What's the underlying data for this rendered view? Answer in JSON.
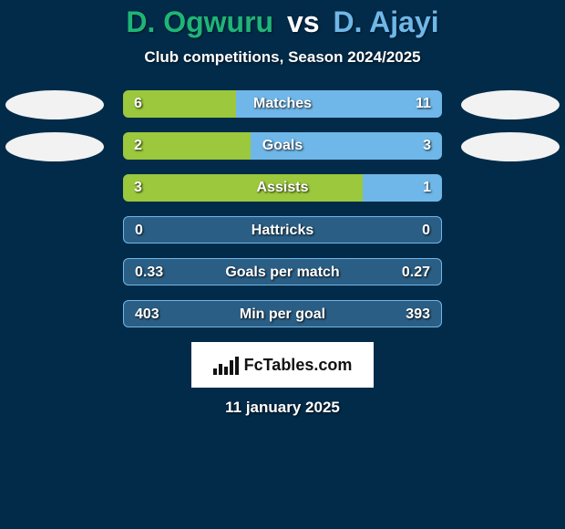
{
  "background_color": "#012b49",
  "title": {
    "player1": "D. Ogwuru",
    "vs": "vs",
    "player2": "D. Ajayi",
    "player1_color": "#1fb576",
    "vs_color": "#ffffff",
    "player2_color": "#6fb7e8"
  },
  "subtitle": "Club competitions, Season 2024/2025",
  "crest_color": "#f2f2f2",
  "bar": {
    "track_color": "#2a5e85",
    "left_fill": "#9bc83c",
    "right_fill": "#6fb7e8",
    "border_color": "#6fb7e8"
  },
  "rows": [
    {
      "label": "Matches",
      "left": "6",
      "right": "11",
      "left_pct": 35.3,
      "right_pct": 64.7,
      "border": false
    },
    {
      "label": "Goals",
      "left": "2",
      "right": "3",
      "left_pct": 40.0,
      "right_pct": 60.0,
      "border": false
    },
    {
      "label": "Assists",
      "left": "3",
      "right": "1",
      "left_pct": 75.0,
      "right_pct": 25.0,
      "border": false
    },
    {
      "label": "Hattricks",
      "left": "0",
      "right": "0",
      "left_pct": 0.0,
      "right_pct": 0.0,
      "border": true
    },
    {
      "label": "Goals per match",
      "left": "0.33",
      "right": "0.27",
      "left_pct": 0.0,
      "right_pct": 0.0,
      "border": true
    },
    {
      "label": "Min per goal",
      "left": "403",
      "right": "393",
      "left_pct": 0.0,
      "right_pct": 0.0,
      "border": true
    }
  ],
  "logo": {
    "brand": "FcTables",
    "suffix": ".com"
  },
  "logo_bar_heights": [
    7,
    12,
    9,
    16,
    20
  ],
  "date": "11 january 2025"
}
